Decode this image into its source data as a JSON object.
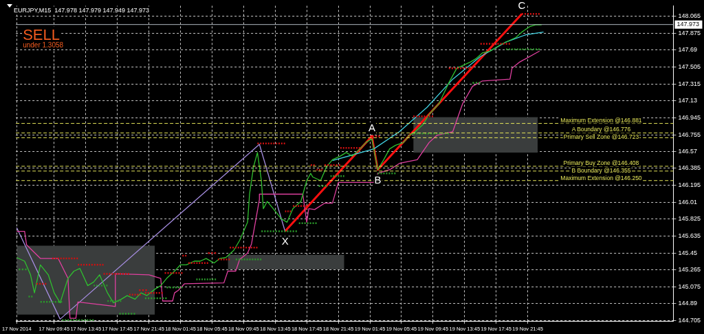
{
  "chart_data": {
    "type": "line",
    "title": "EURJPY,M15  147.978 147.979 147.949 147.973",
    "xlim": [
      "2014-11-17T04:54",
      "2014-11-20T16:12"
    ],
    "xticks": [
      {
        "value": "2014-11-17T05:00",
        "label": "17 Nov 2014"
      },
      {
        "value": "2014-11-17T09:45",
        "label": "17 Nov 09:45"
      },
      {
        "value": "2014-11-17T13:45",
        "label": "17 Nov 13:45"
      },
      {
        "value": "2014-11-17T17:45",
        "label": "17 Nov 17:45"
      },
      {
        "value": "2014-11-17T21:45",
        "label": "17 Nov 21:45"
      },
      {
        "value": "2014-11-18T01:45",
        "label": "18 Nov 01:45"
      },
      {
        "value": "2014-11-18T05:45",
        "label": "18 Nov 05:45"
      },
      {
        "value": "2014-11-18T09:45",
        "label": "18 Nov 09:45"
      },
      {
        "value": "2014-11-18T13:45",
        "label": "18 Nov 13:45"
      },
      {
        "value": "2014-11-18T17:45",
        "label": "18 Nov 17:45"
      },
      {
        "value": "2014-11-18T21:45",
        "label": "18 Nov 21:45"
      },
      {
        "value": "2014-11-19T01:45",
        "label": "19 Nov 01:45"
      },
      {
        "value": "2014-11-19T05:45",
        "label": "19 Nov 05:45"
      },
      {
        "value": "2014-11-19T09:45",
        "label": "19 Nov 09:45"
      },
      {
        "value": "2014-11-19T13:45",
        "label": "19 Nov 13:45"
      },
      {
        "value": "2014-11-19T17:45",
        "label": "19 Nov 17:45"
      },
      {
        "value": "2014-11-19T21:45",
        "label": "19 Nov 21:45"
      }
    ],
    "ylim": [
      144.7,
      148.18
    ],
    "yticks": [
      148.065,
      147.875,
      147.69,
      147.505,
      147.315,
      147.13,
      146.945,
      146.755,
      146.57,
      146.385,
      146.195,
      146.01,
      145.825,
      145.635,
      145.45,
      145.265,
      145.075,
      144.89,
      144.705
    ],
    "grid": true,
    "legend": false,
    "marker": "none",
    "series": [
      {
        "type": "line",
        "color": "#3a3d3d",
        "x": [
          "2014-11-17T05:00",
          "2014-11-17T22:30"
        ],
        "values": [
          null,
          null
        ],
        "lower": [
          144.77,
          144.77
        ],
        "upper": [
          145.53,
          145.53
        ]
      },
      {
        "type": "line",
        "color": "#3a3d3d",
        "x": [
          "2014-11-18T07:45",
          "2014-11-18T22:30"
        ],
        "values": [
          null,
          null
        ],
        "lower": [
          145.27,
          145.27
        ],
        "upper": [
          145.43,
          145.43
        ]
      },
      {
        "type": "line",
        "color": "#3a3d3d",
        "x": [
          "2014-11-19T07:15",
          "2014-11-19T23:00"
        ],
        "values": [
          null,
          null
        ],
        "lower": [
          146.56,
          146.56
        ],
        "upper": [
          146.95,
          146.95
        ]
      },
      {
        "type": "line",
        "color": "#2fbf2f",
        "x": [
          "2014-11-17T05:00",
          "2014-11-17T06:00",
          "2014-11-17T06:45",
          "2014-11-17T07:15",
          "2014-11-17T08:00",
          "2014-11-17T09:00",
          "2014-11-17T09:45",
          "2014-11-17T10:30",
          "2014-11-17T11:30",
          "2014-11-17T12:15",
          "2014-11-17T13:00",
          "2014-11-17T14:00",
          "2014-11-17T14:45",
          "2014-11-17T15:30",
          "2014-11-17T16:30",
          "2014-11-17T17:15",
          "2014-11-17T18:15",
          "2014-11-17T19:00",
          "2014-11-17T20:00",
          "2014-11-17T20:45",
          "2014-11-17T21:30",
          "2014-11-17T22:30",
          "2014-11-17T23:15",
          "2014-11-18T00:00",
          "2014-11-18T01:00",
          "2014-11-18T01:45",
          "2014-11-18T02:30",
          "2014-11-18T03:30",
          "2014-11-18T04:15",
          "2014-11-18T05:00",
          "2014-11-18T06:00",
          "2014-11-18T06:45",
          "2014-11-18T07:30",
          "2014-11-18T08:30",
          "2014-11-18T09:15",
          "2014-11-18T10:15",
          "2014-11-18T10:30",
          "2014-11-18T11:00",
          "2014-11-18T11:30",
          "2014-11-18T12:00",
          "2014-11-18T12:15",
          "2014-11-18T12:45",
          "2014-11-18T13:30",
          "2014-11-18T14:30",
          "2014-11-18T15:15",
          "2014-11-18T16:00",
          "2014-11-18T17:00",
          "2014-11-18T17:45",
          "2014-11-18T18:15",
          "2014-11-18T18:30",
          "2014-11-18T19:30",
          "2014-11-18T20:15",
          "2014-11-18T21:00",
          "2014-11-18T22:00",
          "2014-11-18T22:45",
          "2014-11-18T23:30",
          "2014-11-19T00:30",
          "2014-11-19T01:15",
          "2014-11-19T02:00",
          "2014-11-19T02:30",
          "2014-11-19T02:45",
          "2014-11-19T03:30",
          "2014-11-19T04:15",
          "2014-11-19T05:00",
          "2014-11-19T06:00",
          "2014-11-19T06:45",
          "2014-11-19T07:30",
          "2014-11-19T08:30",
          "2014-11-19T09:15",
          "2014-11-19T10:30",
          "2014-11-19T11:45",
          "2014-11-19T12:45",
          "2014-11-19T13:30",
          "2014-11-19T14:30",
          "2014-11-19T15:15",
          "2014-11-19T16:00",
          "2014-11-19T17:00",
          "2014-11-19T17:45",
          "2014-11-19T18:30",
          "2014-11-19T19:30",
          "2014-11-19T20:15",
          "2014-11-19T21:00",
          "2014-11-19T22:00",
          "2014-11-19T22:45",
          "2014-11-19T23:30"
        ],
        "values": [
          145.4,
          145.36,
          145.21,
          145.01,
          145.32,
          145.21,
          145.01,
          144.9,
          145.17,
          145.25,
          145.28,
          145.09,
          145.13,
          145.21,
          145.01,
          144.9,
          144.94,
          144.98,
          144.94,
          145.01,
          144.98,
          145.05,
          145.09,
          145.17,
          145.25,
          145.32,
          145.32,
          145.36,
          145.36,
          145.39,
          145.34,
          145.39,
          145.4,
          145.48,
          145.59,
          145.79,
          146.1,
          146.4,
          146.56,
          146.25,
          145.94,
          146.02,
          145.94,
          145.83,
          145.79,
          145.94,
          146.02,
          146.25,
          146.33,
          146.29,
          146.25,
          146.4,
          146.48,
          146.52,
          146.56,
          146.52,
          146.6,
          146.67,
          146.71,
          146.48,
          146.37,
          146.48,
          146.6,
          146.64,
          146.67,
          146.75,
          146.79,
          146.87,
          146.98,
          147.1,
          147.33,
          147.49,
          147.52,
          147.56,
          147.6,
          147.66,
          147.68,
          147.72,
          147.76,
          147.8,
          147.83,
          147.89,
          147.95,
          147.97,
          147.97
        ]
      },
      {
        "type": "line",
        "color": "#e040a0",
        "x": [
          "2014-11-17T05:00",
          "2014-11-17T06:00",
          "2014-11-17T06:15",
          "2014-11-17T08:00",
          "2014-11-17T10:15",
          "2014-11-17T11:30",
          "2014-11-17T11:45",
          "2014-11-17T12:30",
          "2014-11-17T12:45",
          "2014-11-17T17:30",
          "2014-11-17T17:30",
          "2014-11-17T21:45",
          "2014-11-17T23:15",
          "2014-11-17T23:30",
          "2014-11-18T00:45",
          "2014-11-18T01:00",
          "2014-11-18T01:30",
          "2014-11-18T02:15",
          "2014-11-18T07:15",
          "2014-11-18T07:45",
          "2014-11-18T08:45",
          "2014-11-18T09:15",
          "2014-11-18T10:15",
          "2014-11-18T10:45",
          "2014-11-18T11:45",
          "2014-11-18T11:45",
          "2014-11-18T17:15",
          "2014-11-18T17:30",
          "2014-11-18T17:45",
          "2014-11-18T18:00",
          "2014-11-18T18:45",
          "2014-11-18T20:00",
          "2014-11-18T21:00",
          "2014-11-18T21:45",
          "2014-11-19T02:15",
          "2014-11-19T02:45",
          "2014-11-19T04:15",
          "2014-11-19T05:30",
          "2014-11-19T07:45",
          "2014-11-19T09:15",
          "2014-11-19T10:15",
          "2014-11-19T12:15",
          "2014-11-19T13:30",
          "2014-11-19T14:45",
          "2014-11-19T16:00",
          "2014-11-19T19:30",
          "2014-11-19T19:45",
          "2014-11-19T20:45",
          "2014-11-19T23:15"
        ],
        "values": [
          145.69,
          145.69,
          145.54,
          145.39,
          145.39,
          145.17,
          144.73,
          144.73,
          144.91,
          144.86,
          145.22,
          145.21,
          145.17,
          144.92,
          144.92,
          145.01,
          145.04,
          145.11,
          145.12,
          145.25,
          145.25,
          145.38,
          145.45,
          145.55,
          146.04,
          146.1,
          146.1,
          145.94,
          145.79,
          145.94,
          145.93,
          146.0,
          146.0,
          146.23,
          146.23,
          146.33,
          146.37,
          146.44,
          146.48,
          146.67,
          146.75,
          146.79,
          147.1,
          147.29,
          147.35,
          147.37,
          147.49,
          147.56,
          147.68
        ]
      },
      {
        "type": "line",
        "color": "#40d0e0",
        "x": [
          "2014-11-18T21:00",
          "2014-11-19T02:15",
          "2014-11-19T05:30",
          "2014-11-19T09:00",
          "2014-11-19T12:15",
          "2014-11-19T15:45",
          "2014-11-19T19:00",
          "2014-11-19T21:30",
          "2014-11-19T23:45"
        ],
        "values": [
          146.47,
          146.6,
          146.79,
          147.06,
          147.37,
          147.62,
          147.78,
          147.86,
          147.89
        ]
      },
      {
        "type": "line",
        "color": "#a58de0",
        "x": [
          "2014-11-17T05:00",
          "2014-11-17T10:30",
          "2014-11-18T11:45",
          "2014-11-18T15:00"
        ],
        "values": [
          145.73,
          144.72,
          146.65,
          145.69
        ]
      },
      {
        "type": "line",
        "color": "#ff1010",
        "x": [
          "2014-11-18T15:00",
          "2014-11-19T02:00",
          "2014-11-19T02:45",
          "2014-11-19T21:00"
        ],
        "values": [
          145.69,
          146.74,
          146.37,
          148.09
        ]
      },
      {
        "type": "line",
        "color": "#d01010",
        "line_style": "dotted",
        "x": [
          "2014-11-17T07:30",
          "2014-11-17T08:45"
        ],
        "values": [
          145.11,
          145.11
        ]
      },
      {
        "type": "line",
        "color": "#d01010",
        "line_style": "dotted",
        "x": [
          "2014-11-17T09:30",
          "2014-11-17T12:45"
        ],
        "values": [
          145.39,
          145.39
        ]
      },
      {
        "type": "line",
        "color": "#d01010",
        "line_style": "dotted",
        "x": [
          "2014-11-17T12:45",
          "2014-11-17T16:00"
        ],
        "values": [
          145.32,
          145.32
        ]
      },
      {
        "type": "line",
        "color": "#d01010",
        "line_style": "dotted",
        "x": [
          "2014-11-17T16:00",
          "2014-11-17T19:15"
        ],
        "values": [
          145.22,
          145.22
        ]
      },
      {
        "type": "line",
        "color": "#d01010",
        "line_style": "dotted",
        "x": [
          "2014-11-17T19:15",
          "2014-11-17T20:45"
        ],
        "values": [
          144.99,
          144.99
        ]
      },
      {
        "type": "line",
        "color": "#d01010",
        "line_style": "dotted",
        "x": [
          "2014-11-17T20:30",
          "2014-11-17T21:30"
        ],
        "values": [
          145.04,
          145.04
        ]
      },
      {
        "type": "line",
        "color": "#d01010",
        "line_style": "dotted",
        "x": [
          "2014-11-17T21:15",
          "2014-11-17T23:30"
        ],
        "values": [
          145.01,
          145.01
        ]
      },
      {
        "type": "line",
        "color": "#d01010",
        "line_style": "dotted",
        "x": [
          "2014-11-17T23:45",
          "2014-11-18T02:00"
        ],
        "values": [
          145.23,
          145.23
        ]
      },
      {
        "type": "line",
        "color": "#d01010",
        "line_style": "dotted",
        "x": [
          "2014-11-18T02:00",
          "2014-11-18T02:30"
        ],
        "values": [
          145.42,
          145.42
        ]
      },
      {
        "type": "line",
        "color": "#d01010",
        "line_style": "dotted",
        "x": [
          "2014-11-18T02:45",
          "2014-11-18T05:15"
        ],
        "values": [
          145.34,
          145.34
        ]
      },
      {
        "type": "line",
        "color": "#d01010",
        "line_style": "dotted",
        "x": [
          "2014-11-18T05:15",
          "2014-11-18T06:15"
        ],
        "values": [
          145.45,
          145.45
        ]
      },
      {
        "type": "line",
        "color": "#d01010",
        "line_style": "dotted",
        "x": [
          "2014-11-18T06:30",
          "2014-11-18T08:00"
        ],
        "values": [
          145.38,
          145.38
        ]
      },
      {
        "type": "line",
        "color": "#d01010",
        "line_style": "dotted",
        "x": [
          "2014-11-18T08:00",
          "2014-11-18T11:30"
        ],
        "values": [
          145.51,
          145.51
        ]
      },
      {
        "type": "line",
        "color": "#d01010",
        "line_style": "dotted",
        "x": [
          "2014-11-18T11:30",
          "2014-11-18T15:00"
        ],
        "values": [
          146.66,
          146.66
        ]
      },
      {
        "type": "line",
        "color": "#d01010",
        "line_style": "dotted",
        "x": [
          "2014-11-18T15:00",
          "2014-11-18T15:45"
        ],
        "values": [
          145.91,
          145.91
        ]
      },
      {
        "type": "line",
        "color": "#d01010",
        "line_style": "dotted",
        "x": [
          "2014-11-18T16:00",
          "2014-11-18T17:45"
        ],
        "values": [
          145.97,
          145.97
        ]
      },
      {
        "type": "line",
        "color": "#d01010",
        "line_style": "dotted",
        "x": [
          "2014-11-18T18:15",
          "2014-11-18T18:45"
        ],
        "values": [
          146.42,
          146.42
        ]
      },
      {
        "type": "line",
        "color": "#d01010",
        "line_style": "dotted",
        "x": [
          "2014-11-18T19:00",
          "2014-11-18T19:45"
        ],
        "values": [
          146.37,
          146.37
        ]
      },
      {
        "type": "line",
        "color": "#d01010",
        "line_style": "dotted",
        "x": [
          "2014-11-18T20:00",
          "2014-11-18T22:00"
        ],
        "values": [
          146.42,
          146.42
        ]
      },
      {
        "type": "line",
        "color": "#d01010",
        "line_style": "dotted",
        "x": [
          "2014-11-18T22:00",
          "2014-11-19T00:30"
        ],
        "values": [
          146.61,
          146.61
        ]
      },
      {
        "type": "line",
        "color": "#d01010",
        "line_style": "dotted",
        "x": [
          "2014-11-19T01:45",
          "2014-11-19T03:00"
        ],
        "values": [
          146.74,
          146.74
        ]
      },
      {
        "type": "line",
        "color": "#d01010",
        "line_style": "dotted",
        "x": [
          "2014-11-19T07:15",
          "2014-11-19T09:45"
        ],
        "values": [
          146.96,
          146.96
        ]
      },
      {
        "type": "line",
        "color": "#d01010",
        "line_style": "dotted",
        "x": [
          "2014-11-19T11:45",
          "2014-11-19T14:45"
        ],
        "values": [
          147.49,
          147.49
        ]
      },
      {
        "type": "line",
        "color": "#d01010",
        "line_style": "dotted",
        "x": [
          "2014-11-19T15:45",
          "2014-11-19T19:30"
        ],
        "values": [
          147.76,
          147.76
        ]
      },
      {
        "type": "line",
        "color": "#d01010",
        "line_style": "dotted",
        "x": [
          "2014-11-19T21:00",
          "2014-11-19T23:15"
        ],
        "values": [
          148.09,
          148.09
        ]
      },
      {
        "type": "line",
        "color": "#2a9a2a",
        "line_style": "dotted",
        "x": [
          "2014-11-17T05:15",
          "2014-11-17T06:15"
        ],
        "values": [
          145.27,
          145.27
        ]
      },
      {
        "type": "line",
        "color": "#2a9a2a",
        "line_style": "dotted",
        "x": [
          "2014-11-17T06:30",
          "2014-11-17T07:00"
        ],
        "values": [
          144.97,
          144.97
        ]
      },
      {
        "type": "line",
        "color": "#2a9a2a",
        "line_style": "dotted",
        "x": [
          "2014-11-17T08:00",
          "2014-11-17T10:45"
        ],
        "values": [
          144.91,
          144.91
        ]
      },
      {
        "type": "line",
        "color": "#2a9a2a",
        "line_style": "dotted",
        "x": [
          "2014-11-17T10:45",
          "2014-11-17T14:45"
        ],
        "values": [
          144.71,
          144.71
        ]
      },
      {
        "type": "line",
        "color": "#2a9a2a",
        "line_style": "dotted",
        "x": [
          "2014-11-17T14:45",
          "2014-11-17T16:30"
        ],
        "values": [
          145.09,
          145.09
        ]
      },
      {
        "type": "line",
        "color": "#2a9a2a",
        "line_style": "dotted",
        "x": [
          "2014-11-17T16:30",
          "2014-11-17T18:15"
        ],
        "values": [
          144.92,
          144.92
        ]
      },
      {
        "type": "line",
        "color": "#2a9a2a",
        "line_style": "dotted",
        "x": [
          "2014-11-17T18:00",
          "2014-11-17T20:00"
        ],
        "values": [
          144.78,
          144.78
        ]
      },
      {
        "type": "line",
        "color": "#2a9a2a",
        "line_style": "dotted",
        "x": [
          "2014-11-17T21:15",
          "2014-11-18T00:00"
        ],
        "values": [
          144.95,
          144.95
        ]
      },
      {
        "type": "line",
        "color": "#2a9a2a",
        "line_style": "dotted",
        "x": [
          "2014-11-18T00:00",
          "2014-11-18T02:00"
        ],
        "values": [
          145.07,
          145.07
        ]
      },
      {
        "type": "line",
        "color": "#2a9a2a",
        "line_style": "dotted",
        "x": [
          "2014-11-18T03:45",
          "2014-11-18T06:15"
        ],
        "values": [
          145.16,
          145.16
        ]
      },
      {
        "type": "line",
        "color": "#2a9a2a",
        "line_style": "dotted",
        "x": [
          "2014-11-18T08:45",
          "2014-11-18T12:00"
        ],
        "values": [
          145.38,
          145.38
        ]
      },
      {
        "type": "line",
        "color": "#2a9a2a",
        "line_style": "dotted",
        "x": [
          "2014-11-18T12:00",
          "2014-11-18T16:30"
        ],
        "values": [
          145.69,
          145.69
        ]
      },
      {
        "type": "line",
        "color": "#2a9a2a",
        "line_style": "dotted",
        "x": [
          "2014-11-18T16:45",
          "2014-11-18T19:00"
        ],
        "values": [
          145.78,
          145.78
        ]
      },
      {
        "type": "line",
        "color": "#2a9a2a",
        "line_style": "dotted",
        "x": [
          "2014-11-18T19:15",
          "2014-11-18T20:15"
        ],
        "values": [
          146.19,
          146.19
        ]
      },
      {
        "type": "line",
        "color": "#2a9a2a",
        "line_style": "dotted",
        "x": [
          "2014-11-18T20:45",
          "2014-11-18T22:30"
        ],
        "values": [
          146.3,
          146.3
        ]
      },
      {
        "type": "line",
        "color": "#2a9a2a",
        "line_style": "dotted",
        "x": [
          "2014-11-19T02:45",
          "2014-11-19T05:00"
        ],
        "values": [
          146.33,
          146.33
        ]
      },
      {
        "type": "line",
        "color": "#2a9a2a",
        "line_style": "dotted",
        "x": [
          "2014-11-19T07:15",
          "2014-11-19T11:45"
        ],
        "values": [
          146.77,
          146.77
        ]
      },
      {
        "type": "line",
        "color": "#2a9a2a",
        "line_style": "dotted",
        "x": [
          "2014-11-19T14:45",
          "2014-11-19T15:45"
        ],
        "values": [
          147.33,
          147.33
        ]
      },
      {
        "type": "line",
        "color": "#2a9a2a",
        "line_style": "dotted",
        "x": [
          "2014-11-19T19:00",
          "2014-11-19T23:15"
        ],
        "values": [
          147.7,
          147.7
        ]
      }
    ],
    "ref_lines": [
      {
        "axis": "y",
        "value": 147.973,
        "label": "147.973",
        "color": "#b0b8c0",
        "line_style": "solid"
      },
      {
        "axis": "y",
        "value": 146.881,
        "label": "Maximum Extension @146.881",
        "color": "#e6e65a",
        "line_style": "dashed"
      },
      {
        "axis": "y",
        "value": 146.776,
        "label": "A Boundary @146.776",
        "color": "#e6e65a",
        "line_style": "dashed"
      },
      {
        "axis": "y",
        "value": 146.723,
        "label": "Primary Sell Zone @146.723",
        "color": "#e6e65a",
        "line_style": "dashed"
      },
      {
        "axis": "y",
        "value": 146.408,
        "label": "Primary Buy Zone @146.408",
        "color": "#e6e65a",
        "line_style": "dashed"
      },
      {
        "axis": "y",
        "value": 146.355,
        "label": "B Boundary @146.355",
        "color": "#e6e65a",
        "line_style": "dashed"
      },
      {
        "axis": "y",
        "value": 146.25,
        "label": "Maximum Extension @146.250",
        "color": "#e6e65a",
        "line_style": "dashed"
      }
    ],
    "annotations": [
      "SELL",
      "under 1.3058",
      {
        "text": "X",
        "x": "2014-11-18T15:00",
        "y": 145.69
      },
      {
        "text": "A",
        "x": "2014-11-19T02:00",
        "y": 146.74
      },
      {
        "text": "B",
        "x": "2014-11-19T02:45",
        "y": 146.37
      },
      {
        "text": "C",
        "x": "2014-11-19T21:00",
        "y": 148.09
      }
    ]
  }
}
